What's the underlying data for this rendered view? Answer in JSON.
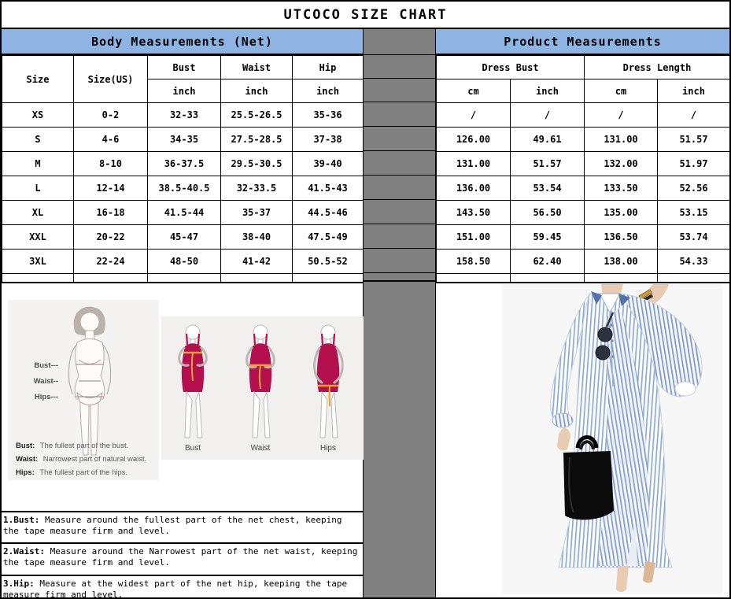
{
  "title": "UTCOCO SIZE CHART",
  "bands": {
    "body": "Body Measurements (Net)",
    "product": "Product Measurements"
  },
  "body_table": {
    "headers": {
      "size": "Size",
      "size_us": "Size(US)",
      "bust": "Bust",
      "waist": "Waist",
      "hip": "Hip",
      "unit": "inch"
    },
    "rows": [
      [
        "XS",
        "0-2",
        "32-33",
        "25.5-26.5",
        "35-36"
      ],
      [
        "S",
        "4-6",
        "34-35",
        "27.5-28.5",
        "37-38"
      ],
      [
        "M",
        "8-10",
        "36-37.5",
        "29.5-30.5",
        "39-40"
      ],
      [
        "L",
        "12-14",
        "38.5-40.5",
        "32-33.5",
        "41.5-43"
      ],
      [
        "XL",
        "16-18",
        "41.5-44",
        "35-37",
        "44.5-46"
      ],
      [
        "XXL",
        "20-22",
        "45-47",
        "38-40",
        "47.5-49"
      ],
      [
        "3XL",
        "22-24",
        "48-50",
        "41-42",
        "50.5-52"
      ]
    ]
  },
  "product_table": {
    "group1": "Dress Bust",
    "group2": "Dress Length",
    "units": [
      "cm",
      "inch",
      "cm",
      "inch"
    ],
    "rows": [
      [
        "/",
        "/",
        "/",
        "/"
      ],
      [
        "126.00",
        "49.61",
        "131.00",
        "51.57"
      ],
      [
        "131.00",
        "51.57",
        "132.00",
        "51.97"
      ],
      [
        "136.00",
        "53.54",
        "133.50",
        "52.56"
      ],
      [
        "143.50",
        "56.50",
        "135.00",
        "53.15"
      ],
      [
        "151.00",
        "59.45",
        "136.50",
        "53.74"
      ],
      [
        "158.50",
        "62.40",
        "138.00",
        "54.33"
      ]
    ]
  },
  "measure_guide": {
    "pointers": [
      "Bust---",
      "Waist--",
      "Hips---"
    ],
    "notes": [
      {
        "label": "Bust:",
        "text": "The fullest part of the bust."
      },
      {
        "label": "Waist:",
        "text": "Narrowest part of natural waist."
      },
      {
        "label": "Hips:",
        "text": "The fullest part of the hips."
      }
    ]
  },
  "how_to_measure": {
    "labels": [
      "Bust",
      "Waist",
      "Hips"
    ]
  },
  "instructions": [
    {
      "label": "1.Bust:",
      "text": "Measure around the fullest part of the net chest, keeping the tape measure firm and level."
    },
    {
      "label": "2.Waist:",
      "text": "Measure around the Narrowest part of the net waist, keeping the tape measure firm and level."
    },
    {
      "label": "3.Hip:",
      "text": "Measure at the widest part of the net hip, keeping the tape measure firm and level."
    }
  ],
  "colors": {
    "header_blue": "#8DB4E2",
    "divider_gray": "#808080",
    "dress_red": "#B3104D",
    "tape_gold": "#F0A22E",
    "stripe_blue": "#8FA9D0"
  }
}
